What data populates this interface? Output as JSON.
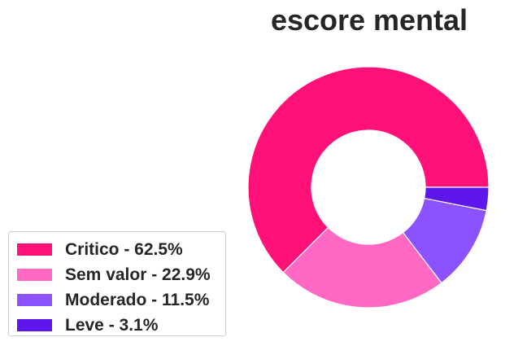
{
  "chart_data": {
    "type": "pie",
    "title": "escore mental",
    "donut": true,
    "legend_position": "lower-left",
    "slices": [
      {
        "label": "Critico",
        "legend": "Critico - 62.5%",
        "percent": 62.5,
        "color": "#ff1177"
      },
      {
        "label": "Sem valor",
        "legend": "Sem valor - 22.9%",
        "percent": 22.9,
        "color": "#ff69c4"
      },
      {
        "label": "Moderado",
        "legend": "Moderado - 11.5%",
        "percent": 11.5,
        "color": "#8c52ff"
      },
      {
        "label": "Leve",
        "legend": "Leve - 3.1%",
        "percent": 3.1,
        "color": "#5e17eb"
      }
    ]
  }
}
